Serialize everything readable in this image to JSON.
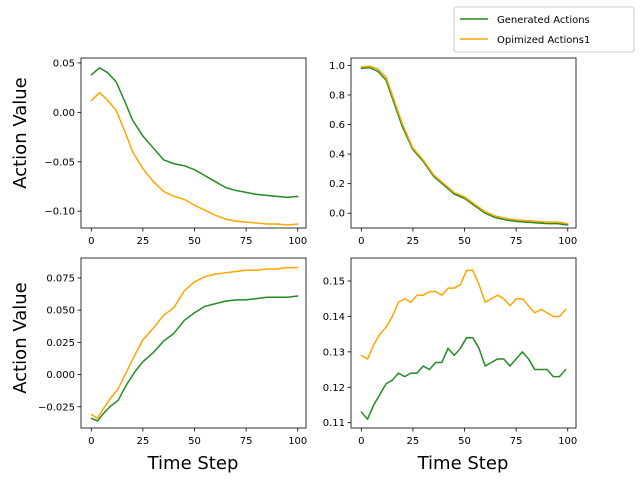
{
  "legend": {
    "entries": [
      {
        "label": "Generated Actions",
        "color": "#228b22"
      },
      {
        "label": "Opimized Actions1",
        "color": "#ffa500"
      }
    ],
    "placement": "top-right"
  },
  "labels": {
    "ylabel_top": "Action Value",
    "ylabel_bottom": "Action Value",
    "xlabel_left": "Time Step",
    "xlabel_right": "Time Step"
  },
  "chart_data": [
    {
      "type": "line",
      "panel": "top-left",
      "xlabel": "",
      "ylabel": "Action Value",
      "xlim": [
        -5,
        104
      ],
      "ylim": [
        -0.117,
        0.055
      ],
      "xticks": [
        0,
        25,
        50,
        75,
        100
      ],
      "yticks": [
        0.05,
        0.0,
        -0.05,
        -0.1
      ],
      "ytick_labels": [
        "0.05",
        "0.00",
        "−0.05",
        "−0.10"
      ],
      "grid": false,
      "series": [
        {
          "name": "Generated Actions",
          "color": "#228b22",
          "x": [
            0,
            4,
            8,
            12,
            16,
            20,
            25,
            30,
            35,
            40,
            45,
            50,
            55,
            60,
            65,
            70,
            75,
            80,
            85,
            90,
            95,
            100
          ],
          "values": [
            0.038,
            0.045,
            0.04,
            0.031,
            0.012,
            -0.008,
            -0.024,
            -0.036,
            -0.048,
            -0.052,
            -0.054,
            -0.058,
            -0.064,
            -0.07,
            -0.076,
            -0.079,
            -0.081,
            -0.083,
            -0.084,
            -0.085,
            -0.086,
            -0.085
          ]
        },
        {
          "name": "Opimized Actions1",
          "color": "#ffa500",
          "x": [
            0,
            4,
            8,
            12,
            16,
            20,
            25,
            30,
            35,
            40,
            45,
            50,
            55,
            60,
            65,
            70,
            75,
            80,
            85,
            90,
            95,
            100
          ],
          "values": [
            0.012,
            0.02,
            0.012,
            0.002,
            -0.018,
            -0.04,
            -0.057,
            -0.07,
            -0.08,
            -0.085,
            -0.088,
            -0.094,
            -0.099,
            -0.104,
            -0.108,
            -0.11,
            -0.111,
            -0.112,
            -0.113,
            -0.113,
            -0.114,
            -0.113
          ]
        }
      ]
    },
    {
      "type": "line",
      "panel": "top-right",
      "xlabel": "",
      "ylabel": "",
      "xlim": [
        -5,
        104
      ],
      "ylim": [
        -0.1,
        1.05
      ],
      "xticks": [
        0,
        25,
        50,
        75,
        100
      ],
      "yticks": [
        1.0,
        0.8,
        0.6,
        0.4,
        0.2,
        0.0
      ],
      "ytick_labels": [
        "1.0",
        "0.8",
        "0.6",
        "0.4",
        "0.2",
        "0.0"
      ],
      "grid": false,
      "series": [
        {
          "name": "Generated Actions",
          "color": "#228b22",
          "x": [
            0,
            4,
            8,
            12,
            16,
            20,
            25,
            30,
            35,
            40,
            45,
            50,
            55,
            60,
            65,
            70,
            75,
            80,
            85,
            90,
            95,
            100
          ],
          "values": [
            0.98,
            0.985,
            0.96,
            0.9,
            0.74,
            0.58,
            0.43,
            0.35,
            0.25,
            0.19,
            0.13,
            0.1,
            0.05,
            0.0,
            -0.03,
            -0.045,
            -0.055,
            -0.06,
            -0.065,
            -0.07,
            -0.07,
            -0.08
          ]
        },
        {
          "name": "Opimized Actions1",
          "color": "#ffa500",
          "x": [
            0,
            4,
            8,
            12,
            16,
            20,
            25,
            30,
            35,
            40,
            45,
            50,
            55,
            60,
            65,
            70,
            75,
            80,
            85,
            90,
            95,
            100
          ],
          "values": [
            0.99,
            0.995,
            0.975,
            0.92,
            0.76,
            0.6,
            0.44,
            0.36,
            0.26,
            0.2,
            0.14,
            0.11,
            0.06,
            0.01,
            -0.02,
            -0.035,
            -0.045,
            -0.05,
            -0.055,
            -0.06,
            -0.06,
            -0.07
          ]
        }
      ]
    },
    {
      "type": "line",
      "panel": "bottom-left",
      "xlabel": "Time Step",
      "ylabel": "Action Value",
      "xlim": [
        -5,
        104
      ],
      "ylim": [
        -0.0415,
        0.0905
      ],
      "xticks": [
        0,
        25,
        50,
        75,
        100
      ],
      "yticks": [
        0.075,
        0.05,
        0.025,
        0.0,
        -0.025
      ],
      "ytick_labels": [
        "0.075",
        "0.050",
        "0.025",
        "0.000",
        "−0.025"
      ],
      "grid": false,
      "series": [
        {
          "name": "Generated Actions",
          "color": "#228b22",
          "x": [
            0,
            3,
            6,
            9,
            13,
            17,
            21,
            25,
            30,
            35,
            40,
            45,
            50,
            55,
            60,
            65,
            70,
            75,
            80,
            85,
            90,
            95,
            100
          ],
          "values": [
            -0.034,
            -0.036,
            -0.03,
            -0.025,
            -0.02,
            -0.008,
            0.002,
            0.01,
            0.017,
            0.026,
            0.032,
            0.042,
            0.048,
            0.053,
            0.055,
            0.057,
            0.058,
            0.058,
            0.059,
            0.06,
            0.06,
            0.06,
            0.061
          ]
        },
        {
          "name": "Opimized Actions1",
          "color": "#ffa500",
          "x": [
            0,
            3,
            6,
            9,
            13,
            17,
            21,
            25,
            30,
            35,
            40,
            45,
            50,
            55,
            60,
            65,
            70,
            75,
            80,
            85,
            90,
            95,
            100
          ],
          "values": [
            -0.031,
            -0.034,
            -0.026,
            -0.019,
            -0.011,
            0.002,
            0.015,
            0.027,
            0.036,
            0.046,
            0.052,
            0.065,
            0.072,
            0.076,
            0.078,
            0.079,
            0.08,
            0.081,
            0.081,
            0.082,
            0.082,
            0.083,
            0.083
          ]
        }
      ]
    },
    {
      "type": "line",
      "panel": "bottom-right",
      "xlabel": "Time Step",
      "ylabel": "",
      "xlim": [
        -5,
        104
      ],
      "ylim": [
        0.1085,
        0.1565
      ],
      "xticks": [
        0,
        25,
        50,
        75,
        100
      ],
      "yticks": [
        0.15,
        0.14,
        0.13,
        0.12,
        0.11
      ],
      "ytick_labels": [
        "0.15",
        "0.14",
        "0.13",
        "0.12",
        "0.11"
      ],
      "grid": false,
      "series": [
        {
          "name": "Generated Actions",
          "color": "#228b22",
          "x": [
            0,
            3,
            6,
            9,
            12,
            15,
            18,
            21,
            24,
            27,
            30,
            33,
            36,
            39,
            42,
            45,
            48,
            51,
            54,
            57,
            60,
            63,
            66,
            69,
            72,
            75,
            78,
            81,
            84,
            87,
            90,
            93,
            96,
            99
          ],
          "values": [
            0.113,
            0.111,
            0.115,
            0.118,
            0.121,
            0.122,
            0.124,
            0.123,
            0.124,
            0.124,
            0.126,
            0.125,
            0.127,
            0.127,
            0.131,
            0.129,
            0.131,
            0.134,
            0.134,
            0.131,
            0.126,
            0.127,
            0.128,
            0.128,
            0.126,
            0.128,
            0.13,
            0.128,
            0.125,
            0.125,
            0.125,
            0.123,
            0.123,
            0.125
          ]
        },
        {
          "name": "Opimized Actions1",
          "color": "#ffa500",
          "x": [
            0,
            3,
            6,
            9,
            12,
            15,
            18,
            21,
            24,
            27,
            30,
            33,
            36,
            39,
            42,
            45,
            48,
            51,
            54,
            57,
            60,
            63,
            66,
            69,
            72,
            75,
            78,
            81,
            84,
            87,
            90,
            93,
            96,
            99
          ],
          "values": [
            0.129,
            0.128,
            0.132,
            0.135,
            0.137,
            0.14,
            0.144,
            0.145,
            0.144,
            0.146,
            0.146,
            0.147,
            0.147,
            0.146,
            0.148,
            0.148,
            0.149,
            0.153,
            0.153,
            0.149,
            0.144,
            0.145,
            0.146,
            0.145,
            0.143,
            0.145,
            0.145,
            0.143,
            0.141,
            0.142,
            0.141,
            0.14,
            0.14,
            0.142
          ]
        }
      ]
    }
  ]
}
